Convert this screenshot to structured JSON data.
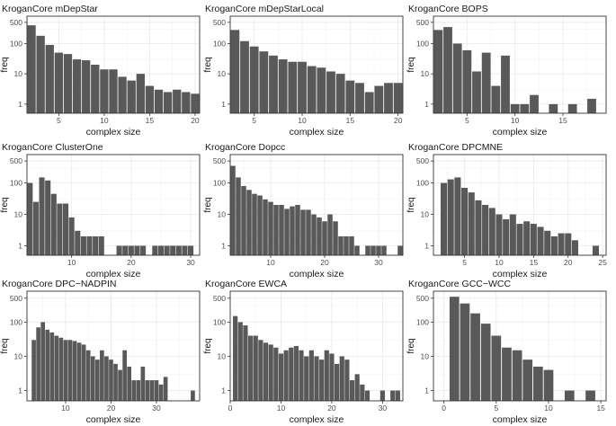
{
  "chart_data": [
    {
      "type": "bar",
      "title": "KroganCore mDepStar",
      "xlabel": "complex size",
      "ylabel": "freq",
      "yscale": "log10",
      "xlim": [
        1.5,
        20.5
      ],
      "ylim": [
        0.5,
        800
      ],
      "xticks": [
        5,
        10,
        15,
        20
      ],
      "yticks": [
        1,
        10,
        100,
        500
      ],
      "x": [
        2,
        3,
        4,
        5,
        6,
        7,
        8,
        9,
        10,
        11,
        12,
        13,
        14,
        15,
        16,
        17,
        18,
        19,
        20
      ],
      "values": [
        400,
        180,
        90,
        50,
        45,
        30,
        28,
        20,
        14,
        14,
        8,
        6,
        10,
        4,
        3,
        2.5,
        3,
        2.5,
        2.2
      ]
    },
    {
      "type": "bar",
      "title": "KroganCore mDepStarLocal",
      "xlabel": "complex size",
      "ylabel": "freq",
      "yscale": "log10",
      "xlim": [
        2.5,
        20.5
      ],
      "ylim": [
        0.5,
        800
      ],
      "xticks": [
        5,
        10,
        15,
        20
      ],
      "yticks": [
        1,
        10,
        100,
        500
      ],
      "x": [
        3,
        4,
        5,
        6,
        7,
        8,
        9,
        10,
        11,
        12,
        13,
        14,
        15,
        16,
        17,
        18,
        19,
        20
      ],
      "values": [
        280,
        120,
        80,
        55,
        40,
        30,
        25,
        25,
        18,
        16,
        12,
        10,
        6,
        5,
        2.5,
        4,
        5,
        5
      ]
    },
    {
      "type": "bar",
      "title": "KroganCore BOPS",
      "xlabel": "complex size",
      "ylabel": "freq",
      "yscale": "log10",
      "xlim": [
        1.5,
        19.5
      ],
      "ylim": [
        0.5,
        800
      ],
      "xticks": [
        5,
        10,
        15
      ],
      "yticks": [
        1,
        10,
        100,
        500
      ],
      "x": [
        2,
        3,
        4,
        5,
        6,
        7,
        8,
        9,
        10,
        11,
        12,
        14,
        16,
        18
      ],
      "values": [
        280,
        350,
        100,
        60,
        12,
        50,
        4,
        40,
        1,
        1,
        2,
        1,
        1,
        1.5
      ]
    },
    {
      "type": "bar",
      "title": "KroganCore ClusterOne",
      "xlabel": "complex size",
      "ylabel": "freq",
      "yscale": "log10",
      "xlim": [
        2.5,
        31.5
      ],
      "ylim": [
        0.5,
        800
      ],
      "xticks": [
        10,
        20,
        30
      ],
      "yticks": [
        1,
        10,
        100,
        500
      ],
      "x": [
        3,
        4,
        5,
        6,
        7,
        8,
        9,
        10,
        11,
        12,
        13,
        14,
        15,
        18,
        19,
        20,
        21,
        22,
        24,
        25,
        26,
        27,
        28,
        29,
        30
      ],
      "values": [
        100,
        25,
        150,
        120,
        45,
        22,
        22,
        8,
        3,
        2,
        2,
        2,
        2,
        1,
        1,
        1,
        1,
        1,
        1,
        1,
        1,
        1,
        1,
        1,
        1
      ]
    },
    {
      "type": "bar",
      "title": "KroganCore Dopcc",
      "xlabel": "complex size",
      "ylabel": "freq",
      "yscale": "log10",
      "xlim": [
        2.5,
        34.5
      ],
      "ylim": [
        0.5,
        800
      ],
      "xticks": [
        10,
        20,
        30
      ],
      "yticks": [
        1,
        10,
        100,
        500
      ],
      "x": [
        3,
        4,
        5,
        6,
        7,
        8,
        9,
        10,
        11,
        12,
        13,
        14,
        15,
        16,
        17,
        18,
        19,
        20,
        21,
        22,
        23,
        24,
        25,
        26,
        28,
        29,
        30,
        31,
        34
      ],
      "values": [
        350,
        150,
        80,
        60,
        45,
        40,
        30,
        25,
        20,
        20,
        15,
        18,
        20,
        14,
        14,
        10,
        8,
        6,
        10,
        6,
        2,
        2,
        2,
        1,
        1,
        1,
        1,
        1,
        1
      ]
    },
    {
      "type": "bar",
      "title": "KroganCore DPCMNE",
      "xlabel": "complex size",
      "ylabel": "freq",
      "yscale": "log10",
      "xlim": [
        0.5,
        25.5
      ],
      "ylim": [
        0.5,
        800
      ],
      "xticks": [
        5,
        10,
        15,
        20,
        25
      ],
      "yticks": [
        1,
        10,
        100,
        500
      ],
      "x": [
        2,
        3,
        4,
        5,
        6,
        7,
        8,
        9,
        10,
        11,
        12,
        13,
        14,
        15,
        16,
        17,
        18,
        19,
        20,
        21,
        24
      ],
      "values": [
        100,
        130,
        150,
        70,
        50,
        28,
        20,
        16,
        10,
        7,
        10,
        5,
        6,
        5,
        4,
        3,
        2,
        2.5,
        2.5,
        1.5,
        1
      ]
    },
    {
      "type": "bar",
      "title": "KroganCore DPC−NADPIN",
      "xlabel": "complex size",
      "ylabel": "freq",
      "yscale": "log10",
      "xlim": [
        1.5,
        39.5
      ],
      "ylim": [
        0.5,
        800
      ],
      "xticks": [
        10,
        20,
        30
      ],
      "yticks": [
        1,
        10,
        100,
        500
      ],
      "x": [
        3,
        4,
        5,
        6,
        7,
        8,
        9,
        10,
        11,
        12,
        13,
        14,
        15,
        16,
        17,
        18,
        19,
        20,
        21,
        22,
        23,
        24,
        25,
        26,
        27,
        28,
        29,
        30,
        31,
        32,
        38
      ],
      "values": [
        30,
        70,
        100,
        60,
        50,
        40,
        35,
        30,
        30,
        28,
        25,
        22,
        15,
        10,
        8,
        15,
        10,
        8,
        6,
        4,
        15,
        5,
        2,
        2,
        5,
        2,
        2,
        2,
        1.5,
        2.5,
        1
      ]
    },
    {
      "type": "bar",
      "title": "KroganCore EWCA",
      "xlabel": "complex size",
      "ylabel": "freq",
      "yscale": "log10",
      "xlim": [
        0,
        34
      ],
      "ylim": [
        0.5,
        800
      ],
      "xticks": [
        0,
        10,
        20,
        30
      ],
      "yticks": [
        1,
        10,
        100,
        500
      ],
      "x": [
        1,
        2,
        3,
        4,
        5,
        6,
        7,
        8,
        9,
        10,
        11,
        12,
        13,
        14,
        15,
        16,
        17,
        18,
        19,
        20,
        21,
        22,
        23,
        24,
        25,
        26,
        27,
        30,
        32,
        33
      ],
      "values": [
        150,
        100,
        80,
        40,
        40,
        30,
        25,
        22,
        18,
        12,
        15,
        18,
        20,
        15,
        10,
        15,
        10,
        8,
        15,
        12,
        6,
        10,
        8,
        2,
        3,
        1.5,
        1,
        1,
        1,
        1
      ]
    },
    {
      "type": "bar",
      "title": "KroganCore GCC−WCC",
      "xlabel": "complex size",
      "ylabel": "freq",
      "yscale": "log10",
      "xlim": [
        -1,
        15.5
      ],
      "ylim": [
        0.5,
        800
      ],
      "xticks": [
        0,
        5,
        10,
        15
      ],
      "yticks": [
        1,
        10,
        100,
        500
      ],
      "x": [
        1,
        2,
        3,
        4,
        5,
        6,
        7,
        8,
        9,
        10,
        12,
        14
      ],
      "values": [
        550,
        350,
        180,
        90,
        40,
        18,
        15,
        8,
        5,
        4,
        1,
        1
      ]
    }
  ]
}
